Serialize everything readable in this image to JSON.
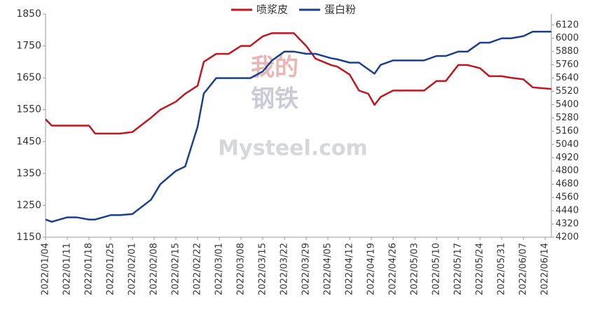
{
  "chart_data": {
    "type": "line",
    "legend": "top",
    "x": [
      "2022/01/04",
      "2022/01/06",
      "2022/01/11",
      "2022/01/14",
      "2022/01/18",
      "2022/01/20",
      "2022/01/25",
      "2022/01/28",
      "2022/02/01",
      "2022/02/07",
      "2022/02/10",
      "2022/02/15",
      "2022/02/18",
      "2022/02/22",
      "2022/02/24",
      "2022/02/28",
      "2022/03/04",
      "2022/03/08",
      "2022/03/11",
      "2022/03/15",
      "2022/03/18",
      "2022/03/22",
      "2022/03/25",
      "2022/03/29",
      "2022/04/01",
      "2022/04/06",
      "2022/04/08",
      "2022/04/12",
      "2022/04/15",
      "2022/04/18",
      "2022/04/20",
      "2022/04/22",
      "2022/04/26",
      "2022/05/03",
      "2022/05/06",
      "2022/05/10",
      "2022/05/13",
      "2022/05/17",
      "2022/05/20",
      "2022/05/24",
      "2022/05/27",
      "2022/05/31",
      "2022/06/03",
      "2022/06/07",
      "2022/06/10",
      "2022/06/16"
    ],
    "xlim": [
      "2022/01/04",
      "2022/06/16"
    ],
    "xticks": [
      "2022/01/04",
      "2022/01/11",
      "2022/01/18",
      "2022/01/25",
      "2022/02/01",
      "2022/02/08",
      "2022/02/15",
      "2022/02/22",
      "2022/03/01",
      "2022/03/08",
      "2022/03/15",
      "2022/03/22",
      "2022/03/29",
      "2022/04/05",
      "2022/04/12",
      "2022/04/19",
      "2022/04/26",
      "2022/05/03",
      "2022/05/10",
      "2022/05/17",
      "2022/05/24",
      "2022/05/31",
      "2022/06/07",
      "2022/06/14"
    ],
    "ylim": [
      1150,
      1850
    ],
    "yticks": [
      1150,
      1250,
      1350,
      1450,
      1550,
      1650,
      1750,
      1850
    ],
    "y2lim": [
      4200,
      6220
    ],
    "y2ticks": [
      4200,
      4320,
      4440,
      4560,
      4680,
      4800,
      4920,
      5040,
      5160,
      5280,
      5400,
      5520,
      5640,
      5760,
      5880,
      6000,
      6120
    ],
    "series": [
      {
        "name": "喷浆皮",
        "color": "#c0161f",
        "values": [
          1520,
          1500,
          1500,
          1500,
          1500,
          1475,
          1475,
          1475,
          1480,
          1525,
          1550,
          1575,
          1600,
          1625,
          1700,
          1725,
          1725,
          1750,
          1750,
          1780,
          1790,
          1790,
          1790,
          1750,
          1710,
          1690,
          1685,
          1660,
          1610,
          1600,
          1565,
          1590,
          1610,
          1610,
          1610,
          1640,
          1640,
          1690,
          1690,
          1680,
          1655,
          1655,
          1650,
          1645,
          1620,
          1615
        ]
      },
      {
        "name": "蛋白粉",
        "color": "#1b3f8f",
        "axis": "y2",
        "values": [
          4360,
          4340,
          4380,
          4380,
          4360,
          4360,
          4400,
          4400,
          4410,
          4540,
          4680,
          4800,
          4840,
          5200,
          5500,
          5640,
          5640,
          5640,
          5640,
          5700,
          5800,
          5880,
          5880,
          5860,
          5860,
          5820,
          5810,
          5780,
          5780,
          5720,
          5680,
          5760,
          5800,
          5800,
          5800,
          5840,
          5840,
          5880,
          5880,
          5960,
          5960,
          6000,
          6000,
          6020,
          6060,
          6060
        ]
      }
    ],
    "watermark": [
      "我的",
      "钢铁",
      "Mysteel.com"
    ]
  }
}
